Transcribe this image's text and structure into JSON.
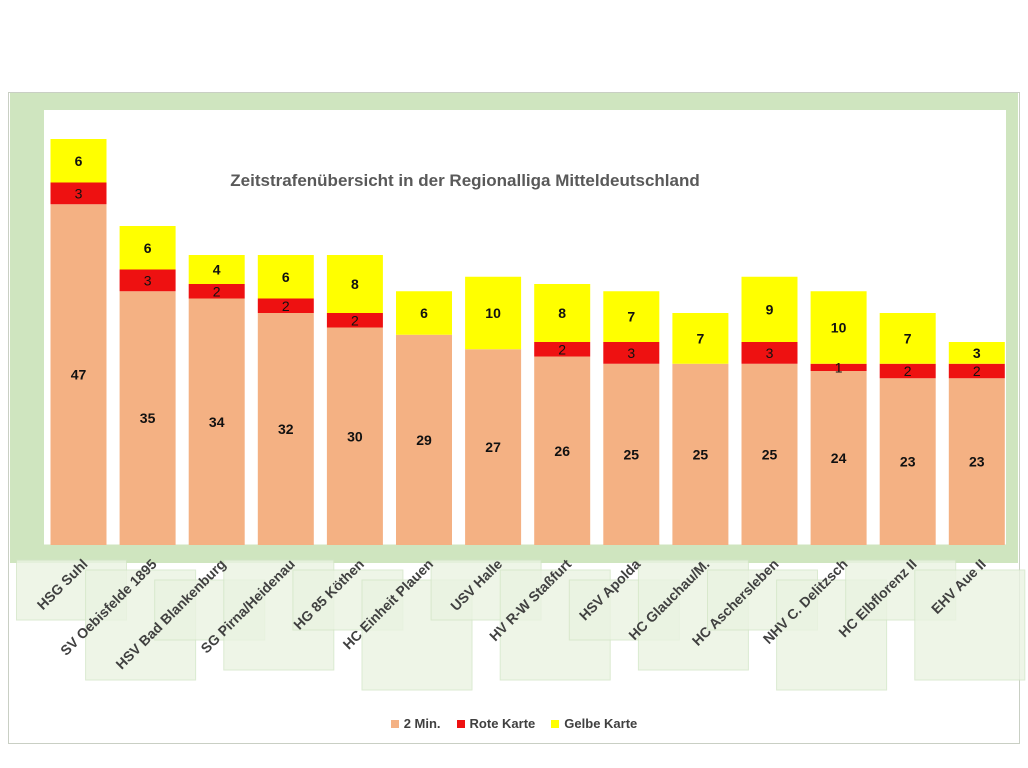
{
  "chart_data": {
    "type": "bar",
    "stacked": true,
    "title": "Zeitstrafenübersicht in der Regionalliga Mitteldeutschland",
    "categories": [
      "HSG Suhl",
      "SV Oebisfelde 1895",
      "HSV Bad Blankenburg",
      "SG Pirna/Heidenau",
      "HG 85 Köthen",
      "HC Einheit Plauen",
      "USV Halle",
      "HV R-W Staßfurt",
      "HSV Apolda",
      "HC Glauchau/M.",
      "HC Aschersleben",
      "NHV C. Delitzsch",
      "HC Elbflorenz II",
      "EHV Aue II"
    ],
    "series": [
      {
        "name": "2 Min.",
        "color": "#f4b183",
        "values": [
          47,
          35,
          34,
          32,
          30,
          29,
          27,
          26,
          25,
          25,
          25,
          24,
          23,
          23
        ]
      },
      {
        "name": "Rote Karte",
        "color": "#ee1111",
        "values": [
          3,
          3,
          2,
          2,
          2,
          null,
          null,
          2,
          3,
          null,
          3,
          1,
          2,
          2
        ]
      },
      {
        "name": "Gelbe Karte",
        "color": "#ffff00",
        "values": [
          6,
          6,
          4,
          6,
          8,
          6,
          10,
          8,
          7,
          7,
          9,
          10,
          7,
          3
        ]
      }
    ],
    "xlabel": "",
    "ylabel": "",
    "ylim": [
      0,
      60
    ],
    "grid": false,
    "legend_position": "bottom"
  }
}
